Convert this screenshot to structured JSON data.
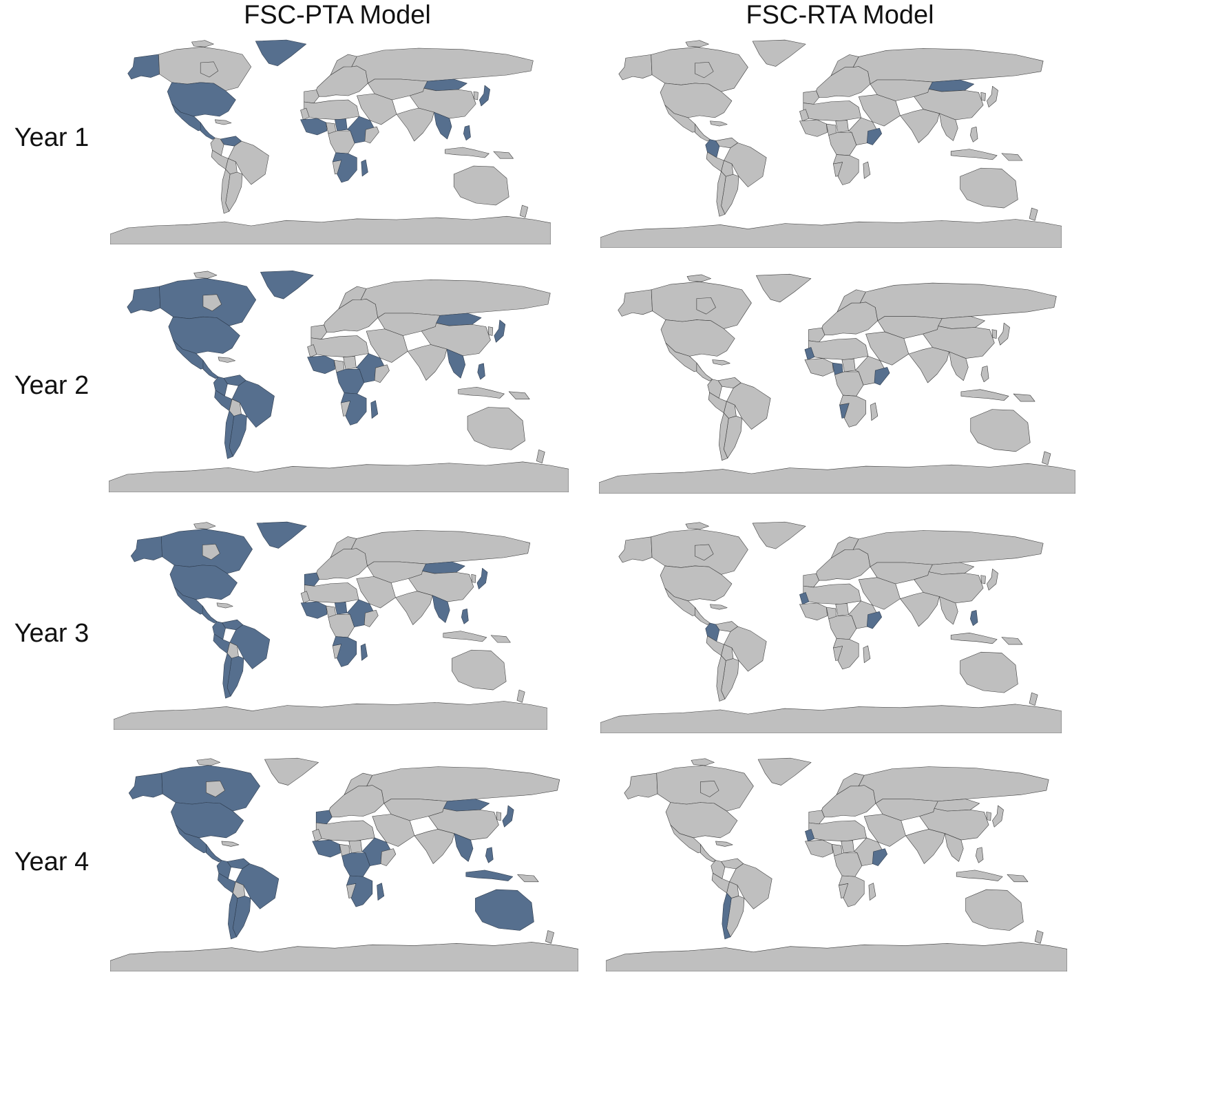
{
  "columns": [
    "FSC-PTA Model",
    "FSC-RTA Model"
  ],
  "rows": [
    "Year 1",
    "Year 2",
    "Year 3",
    "Year 4"
  ],
  "colors": {
    "land": "#bfbfbf",
    "highlight": "#566f8e",
    "border": "#3a3a3a",
    "background": "#ffffff"
  },
  "panels": [
    {
      "row": "Year 1",
      "column": "FSC-PTA Model",
      "highlighted": [
        "alaska",
        "greenland",
        "usa",
        "mexico",
        "central-america",
        "venezuela",
        "mongolia",
        "japan",
        "southeast-asia",
        "philippines",
        "west-africa",
        "chad",
        "east-africa",
        "southern-africa",
        "madagascar"
      ]
    },
    {
      "row": "Year 1",
      "column": "FSC-RTA Model",
      "highlighted": [
        "mongolia",
        "somalia",
        "colombia"
      ]
    },
    {
      "row": "Year 2",
      "column": "FSC-PTA Model",
      "highlighted": [
        "alaska",
        "canada",
        "greenland",
        "usa",
        "mexico",
        "central-america",
        "venezuela",
        "colombia",
        "brazil",
        "peru",
        "argentina",
        "chile",
        "mongolia",
        "japan",
        "southeast-asia",
        "philippines",
        "west-africa",
        "central-africa",
        "east-africa",
        "southern-africa",
        "madagascar"
      ]
    },
    {
      "row": "Year 2",
      "column": "FSC-RTA Model",
      "highlighted": [
        "west-sahara",
        "nigeria",
        "somalia",
        "namibia"
      ]
    },
    {
      "row": "Year 3",
      "column": "FSC-PTA Model",
      "highlighted": [
        "alaska",
        "canada",
        "greenland",
        "usa",
        "mexico",
        "central-america",
        "venezuela",
        "colombia",
        "brazil",
        "peru",
        "argentina",
        "chile",
        "iberia",
        "mongolia",
        "japan",
        "southeast-asia",
        "philippines",
        "west-africa",
        "chad",
        "east-africa",
        "southern-africa",
        "madagascar"
      ]
    },
    {
      "row": "Year 3",
      "column": "FSC-RTA Model",
      "highlighted": [
        "colombia",
        "west-sahara",
        "somalia",
        "philippines"
      ]
    },
    {
      "row": "Year 4",
      "column": "FSC-PTA Model",
      "highlighted": [
        "alaska",
        "canada",
        "usa",
        "mexico",
        "central-america",
        "venezuela",
        "colombia",
        "brazil",
        "peru",
        "argentina",
        "chile",
        "iberia",
        "mongolia",
        "japan",
        "southeast-asia",
        "indonesia",
        "philippines",
        "australia",
        "west-africa",
        "central-africa",
        "east-africa",
        "southern-africa",
        "madagascar"
      ]
    },
    {
      "row": "Year 4",
      "column": "FSC-RTA Model",
      "highlighted": [
        "chile",
        "west-sahara",
        "somalia"
      ]
    }
  ]
}
